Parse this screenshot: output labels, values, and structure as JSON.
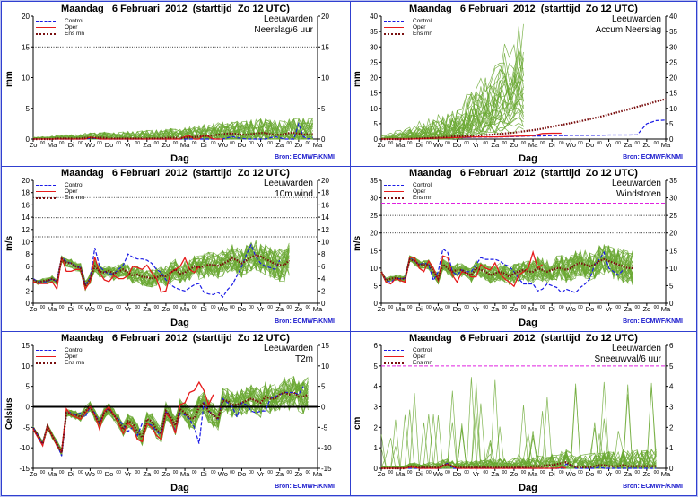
{
  "common": {
    "title": "Maandag   6 Februari  2012  (starttijd  Zo 12 UTC)",
    "station": "Leeuwarden",
    "xlabel": "Dag",
    "source": "Bron:  ECMWF/KNMI",
    "legend": [
      "Control",
      "Oper",
      "Ens mn"
    ],
    "day_ticks": [
      "Zo",
      "Ma",
      "Di",
      "Wo",
      "Do",
      "Vr",
      "Za",
      "Zo",
      "Ma",
      "Di",
      "Wo",
      "Do",
      "Vr",
      "Za",
      "Zo",
      "Ma"
    ],
    "half_tick_label": "00"
  },
  "colors": {
    "control": "#1a1ae6",
    "oper": "#e61a1a",
    "ensmn": "#7a1010",
    "members": "#6aa832",
    "threshold": "#e020e0",
    "frame": "#3040d0"
  },
  "chart_data": [
    {
      "type": "line",
      "title": "Maandag 6 Februari 2012 (starttijd Zo 12 UTC)",
      "variable": "Neerslag/6 uur",
      "ylabel": "mm",
      "ylim": [
        0,
        20
      ],
      "yticks": [
        0,
        5,
        10,
        15,
        20
      ],
      "refline": 15,
      "series": [
        {
          "name": "Control",
          "values": [
            0,
            0,
            0,
            0,
            0,
            0,
            0,
            0,
            0,
            0,
            0,
            0,
            0.1,
            0.1,
            0,
            0,
            0,
            0,
            0,
            0,
            0,
            0,
            0,
            0,
            0,
            0,
            0,
            0,
            0,
            0,
            0,
            0,
            0,
            0,
            0,
            0,
            0,
            0,
            0,
            0,
            0,
            0.2,
            0.4,
            0.2,
            0.1,
            0,
            0,
            0,
            0,
            0,
            0.2,
            0.4,
            0.2,
            0,
            0,
            0,
            2.5,
            0.4,
            0,
            0.3
          ]
        },
        {
          "name": "Oper",
          "values": [
            0,
            0,
            0,
            0,
            0,
            0,
            0,
            0,
            0,
            0,
            0,
            0,
            0.3,
            0.2,
            0,
            0,
            0,
            0,
            0,
            0,
            0,
            0,
            0,
            0,
            0,
            0,
            0,
            0,
            0,
            0,
            0,
            0,
            0.4,
            0.5,
            0,
            0,
            0.7,
            0.4,
            0,
            0,
            0
          ]
        },
        {
          "name": "Ens mn",
          "values": [
            0,
            0,
            0,
            0,
            0,
            0.1,
            0.1,
            0.1,
            0.1,
            0.1,
            0.1,
            0.2,
            0.2,
            0.2,
            0.2,
            0.2,
            0.1,
            0.1,
            0.1,
            0.1,
            0.1,
            0.1,
            0.1,
            0.1,
            0.1,
            0.1,
            0.1,
            0.1,
            0.2,
            0.2,
            0.2,
            0.2,
            0.2,
            0.3,
            0.3,
            0.4,
            0.5,
            0.5,
            0.6,
            0.7,
            0.8,
            0.9,
            0.9,
            0.8,
            0.7,
            0.7,
            0.8,
            0.9,
            1.0,
            1.0,
            0.8,
            0.7,
            0.7,
            0.8,
            1.0,
            1.0,
            0.9,
            0.7,
            0.8,
            0.8
          ]
        }
      ]
    },
    {
      "type": "line",
      "title": "Maandag 6 Februari 2012 (starttijd Zo 12 UTC)",
      "variable": "Accum Neerslag",
      "ylabel": "mm",
      "ylim": [
        0,
        40
      ],
      "yticks": [
        0,
        5,
        10,
        15,
        20,
        25,
        30,
        35,
        40
      ],
      "series": [
        {
          "name": "Control",
          "values": [
            0,
            0,
            0,
            0,
            0.1,
            0.2,
            0.3,
            0.4,
            0.5,
            0.5,
            0.6,
            0.6,
            0.7,
            0.7,
            0.8,
            0.9,
            1.0,
            1.0,
            1.1,
            1.1,
            1.2,
            1.2,
            1.2,
            1.2,
            1.3,
            1.3,
            1.3,
            1.4,
            5,
            6,
            6.2
          ]
        },
        {
          "name": "Oper",
          "values": [
            0,
            0,
            0,
            0,
            0.1,
            0.2,
            0.3,
            0.4,
            0.5,
            0.6,
            0.7,
            0.7,
            0.7,
            0.8,
            0.9,
            1.0,
            1.1,
            1.8,
            1.9,
            1.9
          ]
        },
        {
          "name": "Ens mn",
          "values": [
            0,
            0,
            0,
            0.1,
            0.2,
            0.3,
            0.5,
            0.7,
            0.9,
            1.0,
            1.1,
            1.3,
            1.5,
            1.8,
            2.1,
            2.5,
            2.9,
            3.4,
            4.0,
            4.6,
            5.2,
            5.8,
            6.5,
            7.2,
            8.0,
            8.8,
            9.6,
            10.5,
            11.3,
            12.2,
            13.0
          ]
        }
      ]
    },
    {
      "type": "line",
      "title": "Maandag 6 Februari 2012 (starttijd Zo 12 UTC)",
      "variable": "10m wind",
      "ylabel": "m/s",
      "ylim": [
        0,
        20
      ],
      "yticks": [
        0,
        2,
        4,
        6,
        8,
        10,
        12,
        14,
        16,
        18,
        20
      ],
      "reflines": [
        10.8,
        13.9,
        17.2
      ],
      "series": [
        {
          "name": "Control",
          "values": [
            4,
            3.5,
            3.5,
            3.5,
            4,
            3.5,
            7.5,
            6.8,
            6.5,
            6,
            5.8,
            3,
            4,
            9,
            6,
            5.2,
            4.8,
            4.8,
            5.5,
            6.2,
            8,
            7.5,
            7.2,
            7.2,
            7,
            6.5,
            5.5,
            5,
            3.8,
            3,
            2.5,
            2.2,
            2,
            2.5,
            3,
            3.2,
            1.8,
            1.5,
            1.4,
            1.8,
            1,
            2.2,
            3,
            4.5,
            6,
            8,
            9.5,
            7.5,
            6.5,
            6,
            5.8,
            5.5,
            7
          ]
        },
        {
          "name": "Oper",
          "values": [
            3.5,
            3.2,
            3.2,
            3.2,
            3.5,
            2.3,
            7.5,
            5.2,
            5.2,
            5.5,
            5.5,
            2.3,
            3.5,
            7.5,
            5,
            3.8,
            3.5,
            4.5,
            4,
            4,
            4.5,
            6,
            5.8,
            5.5,
            6.2,
            5,
            4,
            1.8,
            2,
            5,
            5.5,
            6,
            7.4,
            5.5,
            5,
            6
          ]
        },
        {
          "name": "Ens mn",
          "values": [
            3.8,
            3.4,
            3.6,
            3.7,
            4,
            3.5,
            7.2,
            6.6,
            6.5,
            6,
            5.7,
            2.8,
            4,
            6,
            5.2,
            5,
            5.3,
            4.8,
            5.2,
            5.5,
            5,
            4.5,
            4.7,
            4.3,
            4.2,
            4,
            4.2,
            4.5,
            4.4,
            5,
            5.5,
            4.8,
            5,
            5.5,
            6,
            5.8,
            6,
            6.3,
            6.2,
            6.1,
            6.4,
            6.8,
            7.3,
            7,
            6.5,
            7,
            7.5,
            7.8,
            7.6,
            7.2,
            6.8,
            6.4,
            6.2,
            6.2,
            7
          ]
        }
      ]
    },
    {
      "type": "line",
      "title": "Maandag 6 Februari 2012 (starttijd Zo 12 UTC)",
      "variable": "Windstoten",
      "ylabel": "m/s",
      "ylim": [
        0,
        35
      ],
      "yticks": [
        0,
        5,
        10,
        15,
        20,
        25,
        30,
        35
      ],
      "reflines": [
        20,
        25
      ],
      "threshold": 28.5,
      "series": [
        {
          "name": "Control",
          "values": [
            9,
            6.5,
            6,
            7,
            7,
            7,
            13,
            12,
            11,
            11.5,
            11,
            6.5,
            9,
            15.5,
            14.5,
            9,
            8,
            9.5,
            9,
            9,
            11,
            13,
            12.5,
            12.5,
            12.5,
            12,
            11,
            10.5,
            9,
            7,
            5.5,
            5.5,
            5.5,
            3.5,
            4,
            5.5,
            5,
            4.5,
            3,
            4,
            3.5,
            3,
            4.5,
            5.5,
            7,
            11,
            12.5,
            14.5,
            10,
            9,
            8,
            9.5
          ]
        },
        {
          "name": "Oper",
          "values": [
            9,
            6,
            5.5,
            7,
            6.5,
            6,
            13,
            13,
            10,
            9,
            12,
            10,
            6.5,
            13.5,
            13,
            8,
            6,
            9,
            8.5,
            7.5,
            7.5,
            11,
            10,
            9.5,
            11.5,
            8.5,
            7,
            6,
            4.8,
            8,
            9,
            10,
            14.5,
            10,
            11
          ]
        },
        {
          "name": "Ens mn",
          "values": [
            9,
            6.5,
            7,
            7.2,
            7,
            7,
            12.5,
            12,
            11,
            11,
            11,
            9,
            7,
            11,
            10,
            9,
            9.5,
            9.5,
            8.5,
            8,
            10,
            9.5,
            9,
            8,
            8.5,
            9,
            8.5,
            7.5,
            8.5,
            9,
            9.5,
            9,
            9,
            10,
            9.5,
            9,
            9.5,
            10,
            10,
            9.5,
            10,
            11,
            11.5,
            11,
            10.5,
            11,
            12,
            12.5,
            12,
            11.5,
            11,
            10.5,
            10,
            10
          ]
        }
      ]
    },
    {
      "type": "line",
      "title": "Maandag 6 Februari 2012 (starttijd Zo 12 UTC)",
      "variable": "T2m",
      "ylabel": "Celsius",
      "ylim": [
        -15,
        15
      ],
      "yticks": [
        -15,
        -10,
        -5,
        0,
        5,
        10,
        15
      ],
      "zeroline": 0,
      "series": [
        {
          "name": "Control",
          "values": [
            -5,
            -7,
            -9,
            -4.5,
            -7,
            -9,
            -12,
            -1,
            -1.5,
            -2,
            -1.5,
            -2.5,
            0,
            -1.5,
            -4,
            -1,
            -0.5,
            -2,
            -3,
            -4.5,
            -6,
            -5,
            -7,
            -4,
            -4,
            -4.5,
            -6,
            -7,
            -1,
            -3,
            -6,
            -1.5,
            -2,
            -3,
            -5,
            -9,
            1,
            -1,
            -2,
            -3,
            2,
            1,
            0,
            -2.5,
            1,
            0.5,
            -1,
            -1.5,
            -1,
            -1,
            2,
            2.5,
            3,
            3.5,
            3.5,
            3.5,
            3,
            5
          ]
        },
        {
          "name": "Oper",
          "values": [
            -5.5,
            -7.5,
            -9.5,
            -4.5,
            -7,
            -9.5,
            -11,
            -0.5,
            -2,
            -2.5,
            -3,
            -1.5,
            0,
            -2,
            -5.5,
            -1,
            0,
            -2,
            -4,
            -6.5,
            -4,
            -5,
            -8,
            -8.5,
            -4,
            -5,
            -7,
            -8,
            -1.5,
            -3,
            -6.5,
            0.5,
            1,
            3.5,
            4,
            6,
            4,
            0.5,
            3
          ]
        },
        {
          "name": "Ens mn",
          "values": [
            -5.2,
            -7,
            -9,
            -4.8,
            -7,
            -9,
            -11.2,
            -1.5,
            -1.8,
            -2,
            -2.5,
            -1,
            0,
            -2,
            -4,
            -1.5,
            -0.5,
            -2,
            -3.5,
            -5.5,
            -3.5,
            -4,
            -6,
            -7.5,
            -3,
            -3.5,
            -5.5,
            -6.5,
            -1,
            -2.5,
            -4.5,
            -0.5,
            -1.5,
            -2.8,
            -2.8,
            0,
            1,
            -1,
            -2,
            -3,
            1.5,
            1.5,
            0.5,
            0.5,
            1,
            1.5,
            2,
            1.5,
            1,
            2.5,
            2,
            2,
            3,
            3.5,
            3,
            3.5,
            2.5,
            2.5,
            3
          ]
        }
      ]
    },
    {
      "type": "line",
      "title": "Maandag 6 Februari 2012 (starttijd Zo 12 UTC)",
      "variable": "Sneeuwval/6 uur",
      "ylabel": "cm",
      "ylim": [
        0,
        6
      ],
      "yticks": [
        0,
        1,
        2,
        3,
        4,
        5,
        6
      ],
      "threshold": 5,
      "series": [
        {
          "name": "Control",
          "values": [
            0,
            0,
            0,
            0,
            0,
            0,
            0,
            0,
            0,
            0,
            0,
            0,
            0,
            0.15,
            0.25,
            0,
            0,
            0,
            0,
            0,
            0,
            0,
            0,
            0,
            0,
            0,
            0,
            0,
            0,
            0,
            0,
            0,
            0,
            0,
            0,
            0,
            0,
            0,
            0,
            0.2,
            0.15,
            0,
            0,
            0,
            0,
            0,
            0.05,
            0,
            0,
            0,
            0,
            0,
            0,
            0,
            0,
            0,
            0,
            0,
            0
          ]
        },
        {
          "name": "Oper",
          "values": [
            0,
            0,
            0,
            0,
            0,
            0,
            0.05,
            0.05,
            0,
            0,
            0,
            0,
            0,
            0.1,
            0.2,
            0.1,
            0,
            0,
            0,
            0,
            0,
            0,
            0,
            0,
            0,
            0,
            0,
            0,
            0,
            0,
            0,
            0,
            0,
            0,
            0,
            0,
            0,
            0,
            0.05,
            0
          ]
        },
        {
          "name": "Ens mn",
          "values": [
            0,
            0,
            0,
            0,
            0,
            0,
            0.1,
            0.1,
            0.05,
            0.05,
            0.05,
            0.05,
            0.05,
            0.15,
            0.2,
            0.1,
            0.05,
            0.05,
            0.05,
            0.05,
            0.05,
            0.05,
            0.05,
            0.05,
            0.05,
            0.05,
            0.05,
            0.05,
            0.05,
            0.05,
            0.05,
            0.05,
            0.1,
            0.1,
            0.1,
            0.15,
            0.15,
            0.2,
            0.25,
            0.3,
            0.15,
            0.05,
            0.05,
            0.05,
            0.05,
            0.1,
            0.15,
            0.15,
            0.1,
            0.1,
            0.1,
            0.15,
            0.1,
            0.1,
            0.1,
            0.1,
            0.1,
            0.1,
            0.1
          ]
        }
      ]
    }
  ]
}
